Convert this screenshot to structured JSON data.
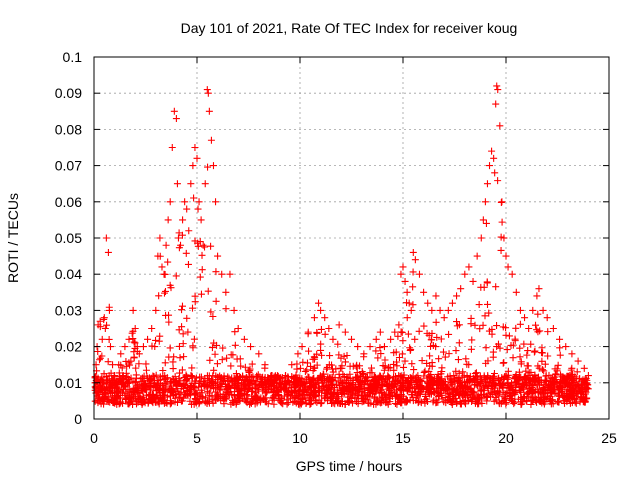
{
  "chart_data": {
    "type": "scatter",
    "title": "Day 101 of 2021, Rate Of TEC Index for receiver koug",
    "xlabel": "GPS time / hours",
    "ylabel": "ROTI / TECUs",
    "xlim": [
      0,
      25
    ],
    "ylim": [
      0,
      0.1
    ],
    "xticks": [
      0,
      5,
      10,
      15,
      20,
      25
    ],
    "xtick_labels": [
      "0",
      "5",
      "10",
      "15",
      "20",
      "25"
    ],
    "yticks": [
      0,
      0.01,
      0.02,
      0.03,
      0.04,
      0.05,
      0.06,
      0.07,
      0.08,
      0.09,
      0.1
    ],
    "ytick_labels": [
      "0",
      "0.01",
      "0.02",
      "0.03",
      "0.04",
      "0.05",
      "0.06",
      "0.07",
      "0.08",
      "0.09",
      "0.1"
    ],
    "grid": true,
    "marker": "plus",
    "marker_color": "#ff0000",
    "series": [
      {
        "x": [
          0.05,
          0.1,
          0.15,
          0.2,
          0.3,
          0.4,
          0.5,
          0.55,
          0.6,
          0.7,
          0.75,
          0.8,
          0.9,
          1.0,
          1.1,
          1.2,
          1.3,
          1.5,
          1.7,
          1.9,
          2.0,
          2.1,
          2.2,
          2.4,
          2.6,
          2.8,
          3.0,
          3.1,
          3.2,
          3.3,
          3.4,
          3.5,
          3.6,
          3.7,
          3.8,
          3.9,
          4.0,
          4.05,
          4.1,
          4.2,
          4.3,
          4.4,
          4.5,
          4.6,
          4.7,
          4.8,
          4.9,
          5.0,
          5.05,
          5.1,
          5.2,
          5.3,
          5.4,
          5.5,
          5.55,
          5.6,
          5.7,
          5.8,
          5.9,
          6.0,
          6.2,
          6.4,
          6.6,
          6.8,
          7.0,
          7.3,
          7.6,
          8.0,
          8.3,
          8.6,
          9.0,
          9.3,
          9.6,
          9.9,
          10.1,
          10.4,
          10.7,
          10.9,
          11.0,
          11.2,
          11.4,
          11.6,
          11.9,
          12.2,
          12.5,
          12.8,
          13.1,
          13.4,
          13.7,
          13.9,
          14.1,
          14.4,
          14.6,
          14.8,
          14.9,
          15.0,
          15.1,
          15.2,
          15.3,
          15.4,
          15.5,
          15.6,
          15.8,
          16.0,
          16.2,
          16.4,
          16.6,
          16.8,
          17.0,
          17.2,
          17.4,
          17.6,
          17.8,
          18.0,
          18.2,
          18.4,
          18.6,
          18.8,
          18.9,
          19.0,
          19.1,
          19.2,
          19.3,
          19.4,
          19.45,
          19.5,
          19.55,
          19.6,
          19.7,
          19.8,
          19.9,
          20.0,
          20.1,
          20.3,
          20.5,
          20.7,
          20.9,
          21.1,
          21.3,
          21.5,
          21.6,
          21.8,
          22.0,
          22.3,
          22.6,
          22.9,
          23.2,
          23.5,
          23.8,
          24.0
        ],
        "y": [
          0.01,
          0.015,
          0.02,
          0.026,
          0.027,
          0.022,
          0.028,
          0.025,
          0.05,
          0.046,
          0.03,
          0.02,
          0.015,
          0.012,
          0.01,
          0.015,
          0.018,
          0.02,
          0.022,
          0.03,
          0.025,
          0.02,
          0.018,
          0.02,
          0.022,
          0.025,
          0.03,
          0.045,
          0.05,
          0.042,
          0.04,
          0.048,
          0.055,
          0.06,
          0.075,
          0.085,
          0.083,
          0.065,
          0.05,
          0.048,
          0.055,
          0.06,
          0.058,
          0.052,
          0.065,
          0.07,
          0.075,
          0.072,
          0.058,
          0.06,
          0.055,
          0.048,
          0.065,
          0.091,
          0.09,
          0.085,
          0.077,
          0.07,
          0.06,
          0.045,
          0.04,
          0.035,
          0.04,
          0.03,
          0.025,
          0.022,
          0.02,
          0.018,
          0.015,
          0.012,
          0.01,
          0.012,
          0.015,
          0.018,
          0.02,
          0.024,
          0.028,
          0.032,
          0.03,
          0.028,
          0.025,
          0.022,
          0.026,
          0.024,
          0.022,
          0.02,
          0.018,
          0.02,
          0.022,
          0.024,
          0.02,
          0.022,
          0.024,
          0.026,
          0.04,
          0.042,
          0.038,
          0.035,
          0.032,
          0.03,
          0.046,
          0.044,
          0.04,
          0.035,
          0.032,
          0.03,
          0.034,
          0.03,
          0.028,
          0.03,
          0.032,
          0.034,
          0.036,
          0.04,
          0.042,
          0.038,
          0.045,
          0.05,
          0.055,
          0.06,
          0.065,
          0.07,
          0.074,
          0.072,
          0.068,
          0.087,
          0.092,
          0.091,
          0.081,
          0.06,
          0.05,
          0.045,
          0.042,
          0.04,
          0.035,
          0.03,
          0.028,
          0.025,
          0.03,
          0.034,
          0.036,
          0.03,
          0.028,
          0.025,
          0.022,
          0.02,
          0.018,
          0.016,
          0.014,
          0.012
        ]
      }
    ]
  }
}
